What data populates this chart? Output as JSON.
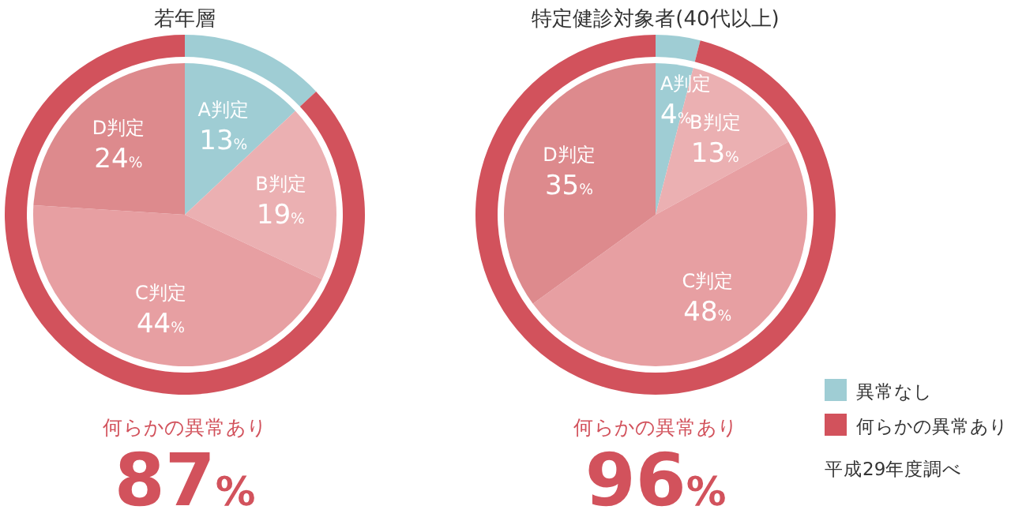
{
  "chart_data": [
    {
      "type": "pie",
      "title": "若年層",
      "categories": [
        "A判定",
        "B判定",
        "C判定",
        "D判定"
      ],
      "values": [
        13,
        19,
        44,
        24
      ],
      "colors": [
        "#9fcdd4",
        "#ebb0b2",
        "#e79fa2",
        "#dd8a8d"
      ],
      "value_labels": [
        "13%",
        "19%",
        "44%",
        "24%"
      ]
    },
    {
      "type": "donut",
      "categories": [
        null,
        "何らかの異常あり"
      ],
      "values": [
        13,
        87
      ],
      "colors": [
        "#9fcdd4",
        "#d2525c"
      ],
      "value_labels": [
        null,
        "87%"
      ]
    },
    {
      "type": "pie",
      "title": "特定健診対象者(40代以上)",
      "categories": [
        "A判定",
        "B判定",
        "C判定",
        "D判定"
      ],
      "values": [
        4,
        13,
        48,
        35
      ],
      "colors": [
        "#9fcdd4",
        "#ebb0b2",
        "#e79fa2",
        "#dd8a8d"
      ],
      "value_labels": [
        "4%",
        "13%",
        "48%",
        "35%"
      ]
    },
    {
      "type": "donut",
      "categories": [
        "異常なし",
        "何らかの異常あり"
      ],
      "values": [
        4,
        96
      ],
      "colors": [
        "#9fcdd4",
        "#d2525c"
      ],
      "value_labels": [
        null,
        "96%"
      ],
      "legend": "bottom right",
      "annotations": [
        "平成29年度調べ"
      ]
    }
  ]
}
